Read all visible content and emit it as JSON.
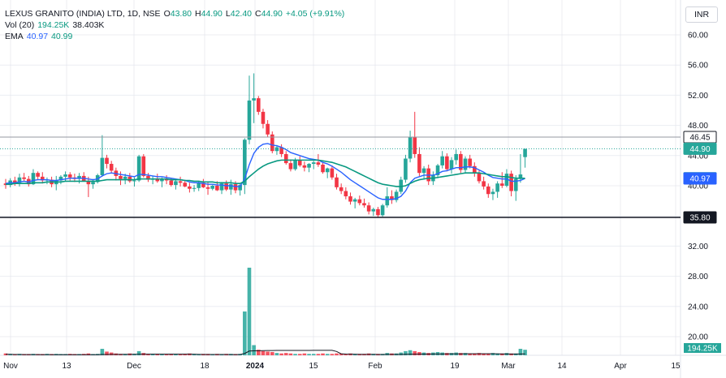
{
  "legend": {
    "symbol": "LEXUS GRANITO (INDIA) LTD, 1D, NSE",
    "o_label": "O",
    "o": "43.80",
    "h_label": "H",
    "h": "44.90",
    "l_label": "L",
    "l": "42.40",
    "c_label": "C",
    "c": "44.90",
    "change": "+4.05 (+9.91%)",
    "vol_label": "Vol (20)",
    "vol_value": "194.25K",
    "vol_ma": "38.403K",
    "ema_label": "EMA",
    "ema_fast": "40.97",
    "ema_slow": "40.99"
  },
  "currency": "INR",
  "colors": {
    "up": "#26a69a",
    "down": "#f23645",
    "ema_blue": "#2962ff",
    "ema_green": "#089981",
    "grid": "#e0e3eb"
  },
  "chart_data": {
    "type": "candlestick",
    "price_axis": {
      "ticks": [
        60.0,
        56.0,
        52.0,
        48.0,
        44.0,
        40.0,
        36.0,
        32.0,
        28.0,
        24.0,
        20.0
      ]
    },
    "time_axis": {
      "ticks": [
        "Nov",
        "13",
        "Dec",
        "18",
        "2024",
        "15",
        "Feb",
        "19",
        "Mar",
        "14",
        "Apr",
        "15"
      ]
    },
    "price_labels": [
      {
        "value": "46.45",
        "style": "line"
      },
      {
        "value": "44.90",
        "style": "last"
      },
      {
        "value": "40.99",
        "style": "ema_slow"
      },
      {
        "value": "40.97",
        "style": "ema_fast"
      },
      {
        "value": "35.80",
        "style": "line_dark"
      }
    ],
    "volume_label": "194.25K",
    "candles": [
      [
        40.3,
        40.9,
        39.6,
        40.1
      ],
      [
        40.1,
        41.0,
        39.8,
        40.7
      ],
      [
        40.7,
        41.2,
        40.0,
        40.4
      ],
      [
        40.4,
        41.6,
        39.9,
        41.1
      ],
      [
        41.1,
        41.7,
        40.6,
        40.9
      ],
      [
        40.9,
        41.3,
        39.9,
        40.2
      ],
      [
        40.2,
        42.2,
        40.1,
        41.7
      ],
      [
        41.7,
        41.9,
        40.8,
        41.2
      ],
      [
        41.2,
        41.8,
        40.3,
        40.7
      ],
      [
        40.7,
        41.1,
        40.2,
        40.8
      ],
      [
        40.8,
        41.2,
        39.8,
        40.2
      ],
      [
        40.2,
        41.3,
        39.4,
        40.7
      ],
      [
        40.7,
        41.4,
        40.2,
        41.2
      ],
      [
        41.2,
        41.9,
        40.6,
        41.5
      ],
      [
        41.5,
        41.8,
        40.7,
        41.1
      ],
      [
        41.1,
        41.6,
        40.5,
        40.9
      ],
      [
        40.9,
        41.7,
        40.3,
        41.3
      ],
      [
        41.3,
        41.8,
        40.6,
        40.6
      ],
      [
        40.6,
        41.2,
        38.5,
        40.2
      ],
      [
        40.2,
        40.9,
        39.6,
        40.5
      ],
      [
        40.5,
        41.6,
        40.3,
        41.4
      ],
      [
        41.4,
        46.7,
        41.2,
        43.7
      ],
      [
        43.7,
        44.1,
        42.3,
        42.9
      ],
      [
        42.9,
        43.3,
        41.7,
        42.0
      ],
      [
        42.0,
        42.4,
        40.7,
        41.3
      ],
      [
        41.3,
        41.9,
        40.1,
        40.9
      ],
      [
        40.9,
        41.6,
        40.2,
        41.2
      ],
      [
        41.2,
        41.7,
        40.4,
        40.6
      ],
      [
        40.6,
        41.1,
        39.9,
        40.7
      ],
      [
        40.7,
        44.1,
        40.5,
        43.9
      ],
      [
        43.9,
        44.2,
        41.1,
        41.3
      ],
      [
        41.3,
        41.7,
        40.5,
        40.8
      ],
      [
        40.8,
        41.3,
        40.2,
        40.9
      ],
      [
        40.9,
        41.6,
        40.4,
        40.6
      ],
      [
        40.6,
        41.1,
        39.8,
        40.9
      ],
      [
        40.9,
        41.4,
        40.2,
        40.7
      ],
      [
        40.7,
        41.0,
        39.9,
        40.1
      ],
      [
        40.1,
        40.8,
        39.5,
        40.6
      ],
      [
        40.6,
        41.2,
        39.9,
        40.4
      ],
      [
        40.4,
        40.8,
        39.8,
        39.9
      ],
      [
        39.9,
        40.4,
        39.1,
        39.6
      ],
      [
        39.6,
        40.1,
        39.2,
        39.7
      ],
      [
        39.7,
        40.6,
        39.3,
        40.4
      ],
      [
        40.4,
        40.9,
        39.7,
        39.8
      ],
      [
        39.8,
        40.5,
        38.8,
        39.6
      ],
      [
        39.6,
        40.1,
        39.4,
        40.0
      ],
      [
        40.0,
        40.6,
        39.3,
        39.4
      ],
      [
        39.4,
        40.5,
        38.9,
        40.3
      ],
      [
        40.3,
        40.7,
        39.3,
        39.5
      ],
      [
        39.5,
        40.8,
        38.8,
        40.2
      ],
      [
        40.2,
        40.6,
        39.0,
        39.4
      ],
      [
        39.4,
        40.2,
        38.7,
        40.1
      ],
      [
        40.1,
        46.3,
        38.9,
        46.1
      ],
      [
        46.1,
        54.6,
        45.5,
        51.3
      ],
      [
        51.3,
        54.9,
        48.3,
        51.6
      ],
      [
        51.6,
        51.9,
        49.4,
        49.8
      ],
      [
        49.8,
        50.2,
        47.6,
        48.2
      ],
      [
        48.2,
        48.7,
        46.4,
        46.8
      ],
      [
        46.8,
        47.2,
        44.3,
        44.6
      ],
      [
        44.6,
        45.4,
        44.1,
        45.1
      ],
      [
        45.1,
        45.5,
        43.8,
        44.2
      ],
      [
        44.2,
        44.6,
        42.8,
        43.0
      ],
      [
        43.0,
        43.5,
        41.9,
        42.2
      ],
      [
        42.2,
        43.7,
        42.0,
        43.4
      ],
      [
        43.4,
        43.9,
        42.5,
        42.7
      ],
      [
        42.7,
        43.2,
        41.9,
        42.4
      ],
      [
        42.4,
        43.0,
        41.8,
        42.9
      ],
      [
        42.9,
        43.3,
        42.2,
        43.1
      ],
      [
        43.1,
        44.2,
        42.5,
        42.8
      ],
      [
        42.8,
        43.1,
        41.6,
        41.8
      ],
      [
        41.8,
        42.4,
        41.0,
        42.3
      ],
      [
        42.3,
        42.7,
        40.8,
        41.1
      ],
      [
        41.1,
        41.6,
        39.5,
        39.8
      ],
      [
        39.8,
        40.3,
        38.9,
        39.3
      ],
      [
        39.3,
        39.8,
        38.2,
        38.6
      ],
      [
        38.6,
        39.1,
        37.5,
        37.9
      ],
      [
        37.9,
        38.4,
        37.0,
        38.2
      ],
      [
        38.2,
        38.7,
        37.4,
        37.7
      ],
      [
        37.7,
        38.3,
        37.1,
        37.4
      ],
      [
        37.4,
        37.8,
        36.2,
        36.6
      ],
      [
        36.6,
        37.1,
        36.0,
        36.9
      ],
      [
        36.9,
        37.2,
        35.8,
        36.1
      ],
      [
        36.1,
        37.6,
        35.9,
        37.4
      ],
      [
        37.4,
        39.8,
        37.1,
        38.6
      ],
      [
        38.6,
        39.4,
        37.6,
        38.1
      ],
      [
        38.1,
        39.5,
        37.8,
        39.2
      ],
      [
        39.2,
        41.2,
        38.9,
        40.8
      ],
      [
        40.8,
        44.1,
        40.4,
        43.6
      ],
      [
        43.6,
        47.3,
        43.1,
        46.4
      ],
      [
        46.4,
        49.8,
        43.7,
        44.2
      ],
      [
        44.2,
        45.1,
        41.3,
        41.7
      ],
      [
        41.7,
        42.6,
        40.8,
        42.3
      ],
      [
        42.3,
        42.8,
        40.1,
        40.6
      ],
      [
        40.6,
        41.9,
        40.1,
        41.4
      ],
      [
        41.4,
        42.9,
        41.0,
        42.7
      ],
      [
        42.7,
        44.6,
        42.3,
        43.9
      ],
      [
        43.9,
        44.3,
        41.9,
        42.2
      ],
      [
        42.2,
        43.8,
        41.6,
        43.4
      ],
      [
        43.4,
        44.8,
        42.8,
        44.2
      ],
      [
        44.2,
        44.6,
        41.7,
        42.1
      ],
      [
        42.1,
        43.9,
        41.6,
        43.6
      ],
      [
        43.6,
        44.1,
        42.3,
        42.6
      ],
      [
        42.6,
        43.1,
        41.2,
        41.7
      ],
      [
        41.7,
        42.0,
        40.3,
        40.6
      ],
      [
        40.6,
        41.2,
        39.5,
        39.9
      ],
      [
        39.9,
        40.3,
        38.4,
        38.9
      ],
      [
        38.9,
        39.6,
        38.1,
        39.2
      ],
      [
        39.2,
        40.6,
        38.4,
        40.3
      ],
      [
        40.3,
        41.8,
        39.7,
        40.0
      ],
      [
        40.0,
        42.2,
        39.8,
        41.6
      ],
      [
        41.6,
        42.0,
        38.6,
        39.3
      ],
      [
        39.3,
        41.4,
        38.0,
        40.9
      ],
      [
        40.9,
        44.2,
        40.4,
        41.5
      ],
      [
        43.8,
        44.9,
        42.4,
        44.9
      ]
    ],
    "ema_fast": [
      40.3,
      40.4,
      40.4,
      40.5,
      40.6,
      40.5,
      40.7,
      40.8,
      40.8,
      40.8,
      40.7,
      40.7,
      40.8,
      40.9,
      41.0,
      41.0,
      41.0,
      41.0,
      40.9,
      40.8,
      40.9,
      41.3,
      41.6,
      41.7,
      41.6,
      41.5,
      41.4,
      41.3,
      41.2,
      41.5,
      41.5,
      41.4,
      41.3,
      41.2,
      41.2,
      41.1,
      41.0,
      40.9,
      40.8,
      40.7,
      40.5,
      40.4,
      40.4,
      40.3,
      40.2,
      40.2,
      40.1,
      40.1,
      40.0,
      40.0,
      39.9,
      39.9,
      40.9,
      42.8,
      44.3,
      45.1,
      45.5,
      45.6,
      45.4,
      45.3,
      45.1,
      44.8,
      44.4,
      44.2,
      44.0,
      43.8,
      43.6,
      43.5,
      43.4,
      43.1,
      42.9,
      42.6,
      42.2,
      41.8,
      41.3,
      40.8,
      40.4,
      40.0,
      39.6,
      39.2,
      38.8,
      38.4,
      38.2,
      38.2,
      38.2,
      38.3,
      38.6,
      39.3,
      40.4,
      41.0,
      41.2,
      41.4,
      41.4,
      41.4,
      41.6,
      41.9,
      42.0,
      42.2,
      42.4,
      42.4,
      42.5,
      42.5,
      42.4,
      42.1,
      41.8,
      41.4,
      41.1,
      41.0,
      40.9,
      40.9,
      40.6,
      40.6,
      40.7,
      40.97
    ],
    "ema_slow": [
      40.2,
      40.2,
      40.3,
      40.3,
      40.3,
      40.3,
      40.4,
      40.4,
      40.4,
      40.5,
      40.5,
      40.5,
      40.5,
      40.6,
      40.6,
      40.6,
      40.6,
      40.6,
      40.6,
      40.6,
      40.6,
      40.7,
      40.8,
      40.8,
      40.8,
      40.8,
      40.8,
      40.8,
      40.8,
      40.9,
      40.9,
      40.9,
      40.9,
      40.9,
      40.9,
      40.9,
      40.8,
      40.8,
      40.8,
      40.7,
      40.7,
      40.6,
      40.6,
      40.5,
      40.5,
      40.5,
      40.4,
      40.4,
      40.4,
      40.4,
      40.3,
      40.3,
      40.6,
      41.2,
      41.7,
      42.2,
      42.6,
      42.9,
      43.1,
      43.3,
      43.4,
      43.4,
      43.4,
      43.4,
      43.4,
      43.4,
      43.4,
      43.4,
      43.4,
      43.3,
      43.2,
      43.1,
      42.9,
      42.7,
      42.5,
      42.2,
      41.9,
      41.6,
      41.3,
      41.0,
      40.7,
      40.4,
      40.2,
      40.1,
      40.0,
      39.9,
      39.9,
      40.0,
      40.3,
      40.6,
      40.8,
      40.9,
      41.0,
      41.0,
      41.1,
      41.2,
      41.3,
      41.4,
      41.5,
      41.6,
      41.7,
      41.7,
      41.7,
      41.7,
      41.6,
      41.5,
      41.4,
      41.3,
      41.2,
      41.2,
      41.1,
      41.0,
      41.0,
      40.99
    ],
    "volume": [
      4,
      3,
      2,
      3,
      2,
      2,
      3,
      2,
      2,
      3,
      2,
      3,
      2,
      2,
      3,
      2,
      2,
      3,
      4,
      2,
      3,
      14,
      8,
      6,
      4,
      3,
      3,
      4,
      3,
      9,
      5,
      3,
      3,
      3,
      2,
      2,
      3,
      3,
      2,
      3,
      4,
      3,
      2,
      3,
      3,
      2,
      3,
      2,
      3,
      3,
      2,
      3,
      95,
      190,
      22,
      12,
      9,
      8,
      7,
      5,
      4,
      5,
      4,
      3,
      3,
      4,
      3,
      3,
      3,
      4,
      3,
      3,
      4,
      4,
      3,
      4,
      3,
      3,
      3,
      4,
      3,
      3,
      3,
      5,
      4,
      4,
      6,
      9,
      11,
      9,
      7,
      6,
      5,
      6,
      7,
      6,
      5,
      5,
      6,
      5,
      5,
      4,
      4,
      5,
      4,
      4,
      5,
      4,
      4,
      5,
      4,
      4,
      14,
      12
    ]
  }
}
